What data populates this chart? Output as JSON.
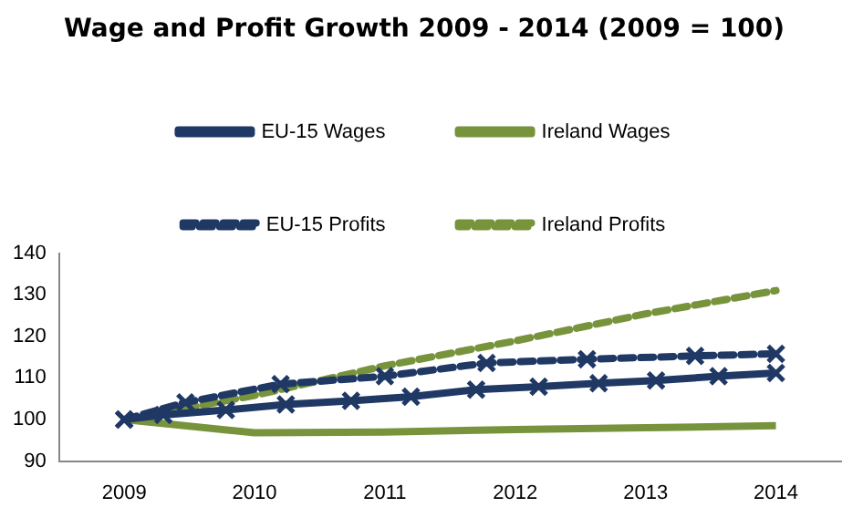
{
  "chart_data": {
    "type": "line",
    "title": "Wage and Profit Growth 2009 - 2014 (2009 = 100)",
    "xlim": [
      2008.5,
      2014.5
    ],
    "xticks": [
      2009,
      2010,
      2011,
      2012,
      2013,
      2014
    ],
    "ylim": [
      90,
      140
    ],
    "yticks": [
      90,
      100,
      110,
      120,
      130,
      140
    ],
    "grid": false,
    "legend": "top",
    "series": [
      {
        "name": "EU-15 Wages",
        "color": "#1f3864",
        "marker": "cross",
        "line_style": "solid",
        "x": [
          2009,
          2009.3,
          2009.78,
          2010.24,
          2010.74,
          2011.2,
          2011.7,
          2012.18,
          2012.64,
          2013.08,
          2013.56,
          2014
        ],
        "values": [
          100,
          101.1,
          102.3,
          103.6,
          104.5,
          105.5,
          107.2,
          107.9,
          108.7,
          109.4,
          110.4,
          111.2
        ]
      },
      {
        "name": "Ireland Wages",
        "color": "#77933c",
        "marker": "none",
        "line_style": "solid",
        "x": [
          2009,
          2010,
          2011,
          2012,
          2013,
          2014
        ],
        "values": [
          100,
          96.8,
          97.0,
          97.6,
          98.0,
          98.5
        ]
      },
      {
        "name": "EU-15 Profits",
        "color": "#1f3864",
        "marker": "cross",
        "line_style": "dashed",
        "x": [
          2009,
          2009.47,
          2010.2,
          2011.0,
          2011.78,
          2012.55,
          2013.38,
          2014
        ],
        "values": [
          100,
          104.1,
          108.5,
          110.4,
          113.6,
          114.5,
          115.3,
          115.8
        ]
      },
      {
        "name": "Ireland Profits",
        "color": "#77933c",
        "marker": "none",
        "line_style": "dashed",
        "x": [
          2009,
          2010,
          2011,
          2012,
          2013,
          2014
        ],
        "values": [
          100,
          105.8,
          112.9,
          118.9,
          125.4,
          131.0
        ]
      }
    ]
  }
}
